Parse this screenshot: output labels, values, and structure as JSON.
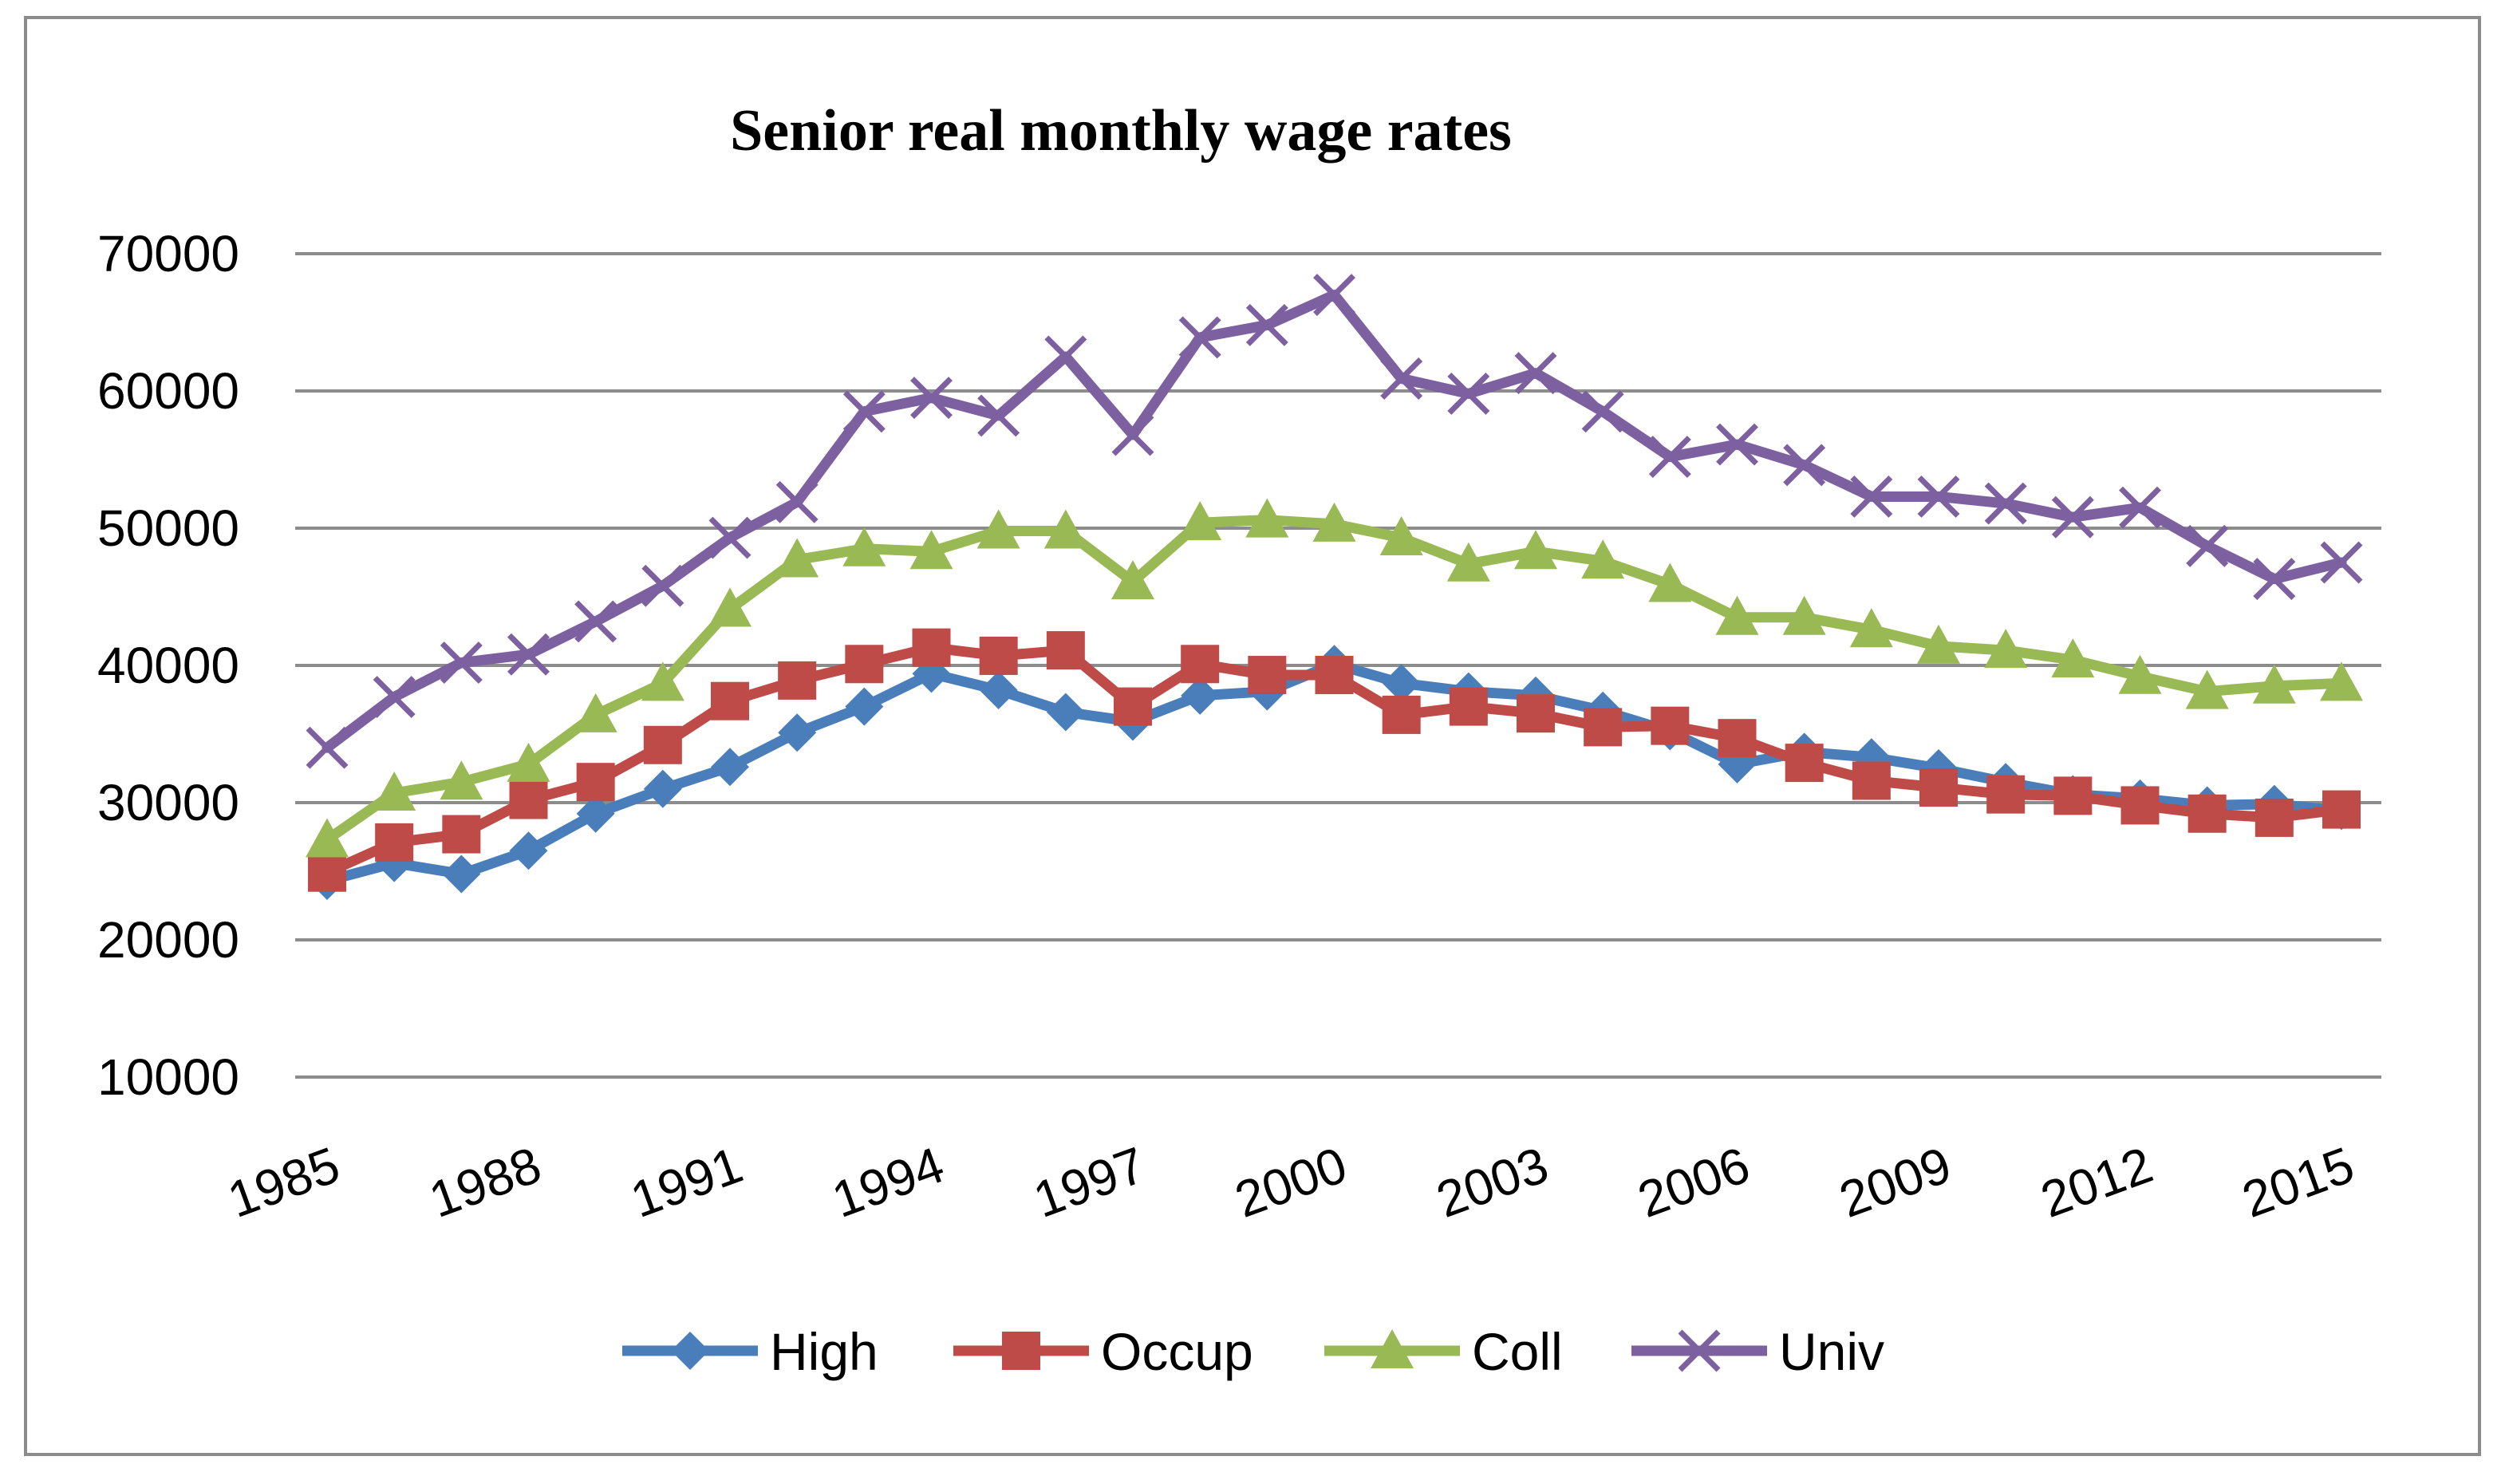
{
  "chart_data": {
    "type": "line",
    "title": "Senior real monthly wage rates",
    "xlabel": "",
    "ylabel": "",
    "ylim": [
      10000,
      70000
    ],
    "yticks": [
      10000,
      20000,
      30000,
      40000,
      50000,
      60000,
      70000
    ],
    "ytick_labels": [
      "10000",
      "20000",
      "30000",
      "40000",
      "50000",
      "60000",
      "70000"
    ],
    "xlim": [
      1985,
      2015
    ],
    "xticks": [
      1985,
      1988,
      1991,
      1994,
      1997,
      2000,
      2003,
      2006,
      2009,
      2012,
      2015
    ],
    "xtick_labels": [
      "1985",
      "1988",
      "1991",
      "1994",
      "1997",
      "2000",
      "2003",
      "2006",
      "2009",
      "2012",
      "2015"
    ],
    "grid": true,
    "legend_position": "bottom",
    "x": [
      1985,
      1986,
      1987,
      1988,
      1989,
      1990,
      1991,
      1992,
      1993,
      1994,
      1995,
      1996,
      1997,
      1998,
      1999,
      2000,
      2001,
      2002,
      2003,
      2004,
      2005,
      2006,
      2007,
      2008,
      2009,
      2010,
      2011,
      2012,
      2013,
      2014,
      2015
    ],
    "series": [
      {
        "name": "High",
        "color": "#4a7ebb",
        "marker": "diamond",
        "values": [
          24300,
          25600,
          24800,
          26500,
          29200,
          31000,
          32600,
          35100,
          37000,
          39400,
          38200,
          36600,
          35900,
          37800,
          38100,
          40100,
          38700,
          38100,
          37800,
          36700,
          35200,
          32800,
          33700,
          33300,
          32500,
          31500,
          30600,
          30300,
          29800,
          29900,
          29400
        ]
      },
      {
        "name": "Occup",
        "color": "#be4b48",
        "marker": "square",
        "values": [
          24900,
          27100,
          27700,
          30200,
          31500,
          34200,
          37400,
          38900,
          40100,
          41300,
          40700,
          41100,
          37000,
          40100,
          39300,
          39300,
          36400,
          37000,
          36500,
          35500,
          35600,
          34700,
          32900,
          31600,
          31100,
          30600,
          30500,
          29800,
          29200,
          28900,
          29500
        ]
      },
      {
        "name": "Coll",
        "color": "#98b954",
        "marker": "triangle",
        "values": [
          27300,
          30700,
          31500,
          32800,
          36400,
          38700,
          44100,
          47700,
          48500,
          48300,
          49800,
          49800,
          46100,
          50400,
          50600,
          50300,
          49300,
          47400,
          48300,
          47600,
          45900,
          43500,
          43500,
          42600,
          41400,
          41100,
          40400,
          39200,
          38100,
          38500,
          38700
        ]
      },
      {
        "name": "Univ",
        "color": "#7d60a0",
        "marker": "x",
        "values": [
          34000,
          37700,
          40200,
          40800,
          43200,
          45800,
          49300,
          51900,
          58500,
          59500,
          58200,
          62500,
          56800,
          63900,
          64800,
          67000,
          60900,
          59800,
          61300,
          58500,
          55200,
          56100,
          54600,
          52300,
          52300,
          51800,
          50800,
          51500,
          48700,
          46300,
          47500
        ]
      }
    ]
  }
}
